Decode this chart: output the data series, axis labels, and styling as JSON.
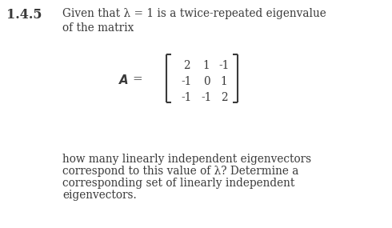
{
  "section_label": "1.4.5",
  "line1": "Given that λ = 1 is a twice-repeated eigenvalue",
  "line2": "of the matrix",
  "matrix": [
    [
      2,
      1,
      -1
    ],
    [
      -1,
      0,
      1
    ],
    [
      -1,
      -1,
      2
    ]
  ],
  "line3": "how many linearly independent eigenvectors",
  "line4": "correspond to this value of λ? Determine a",
  "line5": "corresponding set of linearly independent",
  "line6": "eigenvectors.",
  "bg_color": "#ffffff",
  "text_color": "#3a3a3a",
  "font_size": 9.8,
  "section_font_size": 11.5,
  "fig_width": 4.9,
  "fig_height": 2.85,
  "dpi": 100
}
